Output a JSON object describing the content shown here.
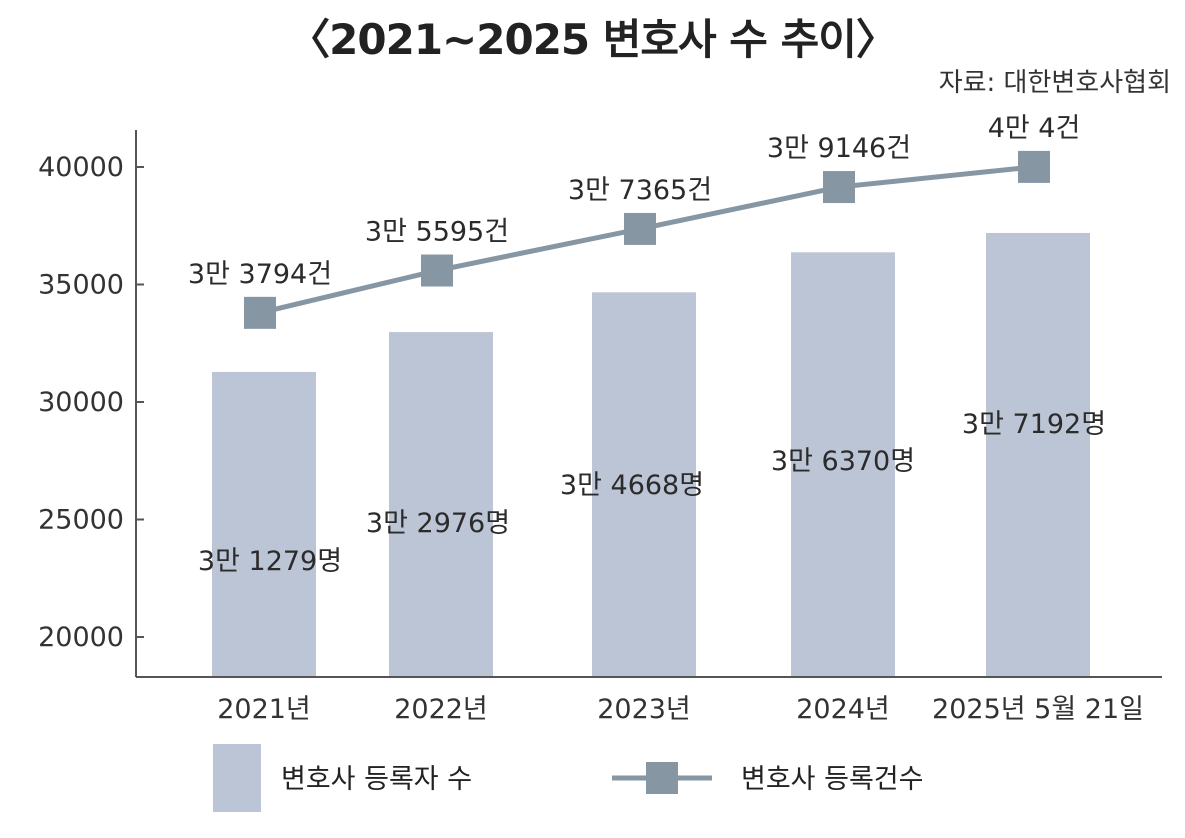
{
  "chart_data": {
    "type": "bar+line",
    "title": "〈2021~2025 변호사 수 추이〉",
    "source": "자료: 대한변호사협회",
    "categories": [
      "2021년",
      "2022년",
      "2023년",
      "2024년",
      "2025년 5월 21일"
    ],
    "ylim": [
      18000,
      42000
    ],
    "yticks": [
      "20000",
      "25000",
      "30000",
      "35000",
      "40000"
    ],
    "grid": false,
    "series": [
      {
        "name": "변호사 등록자 수",
        "type": "bar",
        "color": "#bcc5d6",
        "values": [
          31279,
          32976,
          34668,
          36370,
          37192
        ],
        "labels": [
          "3만 1279명",
          "3만 2976명",
          "3만 4668명",
          "3만 6370명",
          "3만 7192명"
        ]
      },
      {
        "name": "변호사 등록건수",
        "type": "line",
        "color": "#8696a3",
        "values": [
          33794,
          35595,
          37365,
          39146,
          40004
        ],
        "labels": [
          "3만 3794건",
          "3만 5595건",
          "3만 7365건",
          "3만 9146건",
          "4만 4건"
        ]
      }
    ],
    "legend": "bottom"
  }
}
